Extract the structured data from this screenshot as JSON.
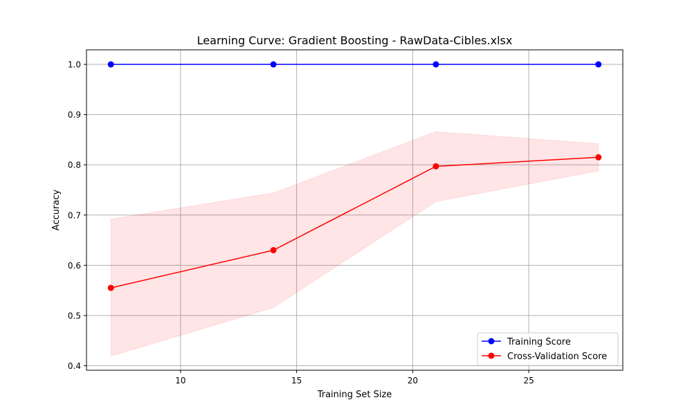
{
  "chart_data": {
    "type": "line",
    "title": "Learning Curve: Gradient Boosting - RawData-Cibles.xlsx",
    "xlabel": "Training Set Size",
    "ylabel": "Accuracy",
    "xlim": [
      5.95,
      29.05
    ],
    "ylim": [
      0.391,
      1.029
    ],
    "grid": true,
    "legend_position": "lower right",
    "x_ticks": [
      10,
      15,
      20,
      25
    ],
    "y_ticks": [
      0.4,
      0.5,
      0.6,
      0.7,
      0.8,
      0.9,
      1.0
    ],
    "x_tick_labels": [
      "10",
      "15",
      "20",
      "25"
    ],
    "y_tick_labels": [
      "0.4",
      "0.5",
      "0.6",
      "0.7",
      "0.8",
      "0.9",
      "1.0"
    ],
    "x": [
      7,
      14,
      21,
      28
    ],
    "series": [
      {
        "name": "Training Score",
        "color": "#0000ff",
        "marker": "circle",
        "values": [
          1.0,
          1.0,
          1.0,
          1.0
        ]
      },
      {
        "name": "Cross-Validation Score",
        "color": "#ff0000",
        "marker": "circle",
        "values": [
          0.555,
          0.63,
          0.797,
          0.815
        ],
        "band": {
          "color": "#ff0000",
          "lower": [
            0.419,
            0.516,
            0.727,
            0.788
          ],
          "upper": [
            0.692,
            0.744,
            0.866,
            0.842
          ]
        }
      }
    ]
  }
}
